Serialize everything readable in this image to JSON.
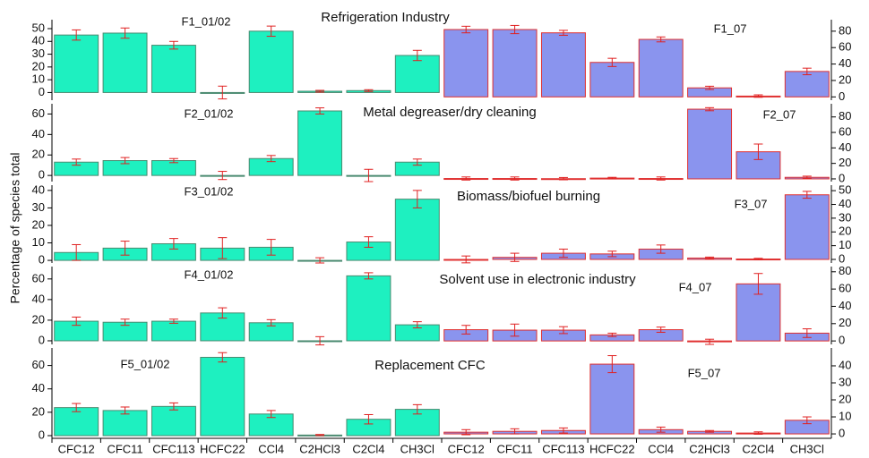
{
  "ylabel": "Percentage of species total",
  "chart_data": [
    {
      "type": "bar",
      "title": "Refrigeration Industry",
      "annotations": [
        "F1_01/02",
        "F1_07"
      ],
      "ylim": [
        -6,
        57
      ],
      "yticks": [
        0,
        10,
        20,
        30,
        40,
        50
      ],
      "y2lim": [
        -4,
        94
      ],
      "y2ticks": [
        0,
        20,
        40,
        60,
        80
      ],
      "series": [
        {
          "color": "#1ef0c0",
          "edgecolor": "#4a8a70",
          "values": [
            45,
            46.5,
            37,
            0,
            48,
            1,
            1.5,
            29,
            null,
            null,
            null,
            null,
            null,
            null,
            null,
            null
          ],
          "errors": [
            4,
            4,
            3,
            5,
            4,
            0.7,
            0.7,
            4,
            null,
            null,
            null,
            null,
            null,
            null,
            null,
            null
          ]
        },
        {
          "color": "#8a94ee",
          "edgecolor": "#e03030",
          "axis": "y2",
          "values": [
            null,
            null,
            null,
            null,
            null,
            null,
            null,
            null,
            82,
            82,
            78,
            42,
            70,
            11,
            1,
            31
          ],
          "errors": [
            null,
            null,
            null,
            null,
            null,
            null,
            null,
            null,
            4,
            5,
            3,
            5,
            3,
            2,
            1.5,
            4
          ]
        }
      ]
    },
    {
      "type": "bar",
      "title": "Metal degreaser/dry cleaning",
      "annotations": [
        "F2_01/02",
        "F2_07"
      ],
      "ylim": [
        -6,
        70
      ],
      "yticks": [
        0,
        20,
        40,
        60
      ],
      "y2lim": [
        -3.5,
        97
      ],
      "y2ticks": [
        0,
        20,
        40,
        60,
        80
      ],
      "series": [
        {
          "color": "#1ef0c0",
          "edgecolor": "#4a8a70",
          "values": [
            13,
            14.5,
            14.5,
            0,
            16.5,
            63,
            0,
            13,
            null,
            null,
            null,
            null,
            null,
            null,
            null,
            null
          ],
          "errors": [
            3,
            3,
            2,
            4,
            3,
            3,
            6,
            3,
            null,
            null,
            null,
            null,
            null,
            null,
            null,
            null
          ]
        },
        {
          "color": "#8a94ee",
          "edgecolor": "#e03030",
          "axis": "y2",
          "values": [
            null,
            null,
            null,
            null,
            null,
            null,
            null,
            null,
            0.5,
            0.5,
            0.3,
            1,
            0.5,
            90,
            35,
            2
          ],
          "errors": [
            null,
            null,
            null,
            null,
            null,
            null,
            null,
            null,
            2,
            2,
            1.5,
            1,
            2,
            2,
            10,
            1.5
          ]
        }
      ]
    },
    {
      "type": "bar",
      "title": "Biomass/biofuel burning",
      "annotations": [
        "F3_01/02",
        "F3_07"
      ],
      "ylim": [
        -1.5,
        43
      ],
      "yticks": [
        0,
        10,
        20,
        30,
        40
      ],
      "y2lim": [
        -2.6,
        54
      ],
      "y2ticks": [
        0,
        10,
        20,
        30,
        40,
        50
      ],
      "series": [
        {
          "color": "#1ef0c0",
          "edgecolor": "#4a8a70",
          "values": [
            4.5,
            7,
            9.5,
            7,
            7.5,
            0,
            10.5,
            35,
            null,
            null,
            null,
            null,
            null,
            null,
            null,
            null
          ],
          "errors": [
            4.5,
            4,
            3,
            6,
            4.5,
            1.5,
            3,
            5,
            null,
            null,
            null,
            null,
            null,
            null,
            null,
            null
          ]
        },
        {
          "color": "#8a94ee",
          "edgecolor": "#e03030",
          "axis": "y2",
          "values": [
            null,
            null,
            null,
            null,
            null,
            null,
            null,
            null,
            0,
            1.5,
            4.5,
            4,
            7.5,
            1,
            0.3,
            47
          ],
          "errors": [
            null,
            null,
            null,
            null,
            null,
            null,
            null,
            null,
            2.5,
            3,
            3,
            2,
            3,
            0.7,
            0.5,
            2.5
          ]
        }
      ]
    },
    {
      "type": "bar",
      "title": "Solvent use in electronic industry",
      "annotations": [
        "F4_01/02",
        "F4_07"
      ],
      "ylim": [
        -3.5,
        72
      ],
      "yticks": [
        0,
        20,
        40,
        60
      ],
      "y2lim": [
        -4,
        86
      ],
      "y2ticks": [
        0,
        20,
        40,
        60,
        80
      ],
      "series": [
        {
          "color": "#1ef0c0",
          "edgecolor": "#4a8a70",
          "values": [
            19,
            18,
            19,
            27,
            17.5,
            0,
            63,
            15.5,
            null,
            null,
            null,
            null,
            null,
            null,
            null,
            null
          ],
          "errors": [
            4,
            3,
            2,
            5,
            3,
            4,
            3,
            3,
            null,
            null,
            null,
            null,
            null,
            null,
            null,
            null
          ]
        },
        {
          "color": "#8a94ee",
          "edgecolor": "#e03030",
          "axis": "y2",
          "values": [
            null,
            null,
            null,
            null,
            null,
            null,
            null,
            null,
            13,
            12.5,
            12.5,
            7,
            13,
            -1,
            66,
            9
          ],
          "errors": [
            null,
            null,
            null,
            null,
            null,
            null,
            null,
            null,
            5,
            7,
            4,
            2,
            3,
            3,
            12,
            5
          ]
        }
      ]
    },
    {
      "type": "bar",
      "title": "Replacement CFC",
      "annotations": [
        "F5_01/02",
        "F5_07"
      ],
      "categories": [
        "CFC12",
        "CFC11",
        "CFC113",
        "HCFC22",
        "CCl4",
        "C2HCl3",
        "C2Cl4",
        "CH3Cl",
        "CFC12",
        "CFC11",
        "CFC113",
        "HCFC22",
        "CCl4",
        "C2HCl3",
        "C2Cl4",
        "CH3Cl"
      ],
      "ylim": [
        -2.3,
        75
      ],
      "yticks": [
        0,
        20,
        40,
        60
      ],
      "y2lim": [
        -2.6,
        50.5
      ],
      "y2ticks": [
        0,
        10,
        20,
        30,
        40
      ],
      "series": [
        {
          "color": "#1ef0c0",
          "edgecolor": "#4a8a70",
          "values": [
            24,
            21.5,
            25,
            67,
            18.5,
            0.5,
            14,
            22.5,
            null,
            null,
            null,
            null,
            null,
            null,
            null,
            null
          ],
          "errors": [
            3.5,
            3,
            3,
            4,
            3,
            0.5,
            4,
            4,
            null,
            null,
            null,
            null,
            null,
            null,
            null,
            null
          ]
        },
        {
          "color": "#8a94ee",
          "edgecolor": "#e03030",
          "axis": "y2",
          "values": [
            null,
            null,
            null,
            null,
            null,
            null,
            null,
            null,
            1,
            1.5,
            2,
            41,
            2.5,
            1.5,
            0.5,
            8
          ],
          "errors": [
            null,
            null,
            null,
            null,
            null,
            null,
            null,
            null,
            1.5,
            1.5,
            1.5,
            5,
            1.5,
            0.5,
            0.7,
            2
          ]
        }
      ]
    }
  ]
}
